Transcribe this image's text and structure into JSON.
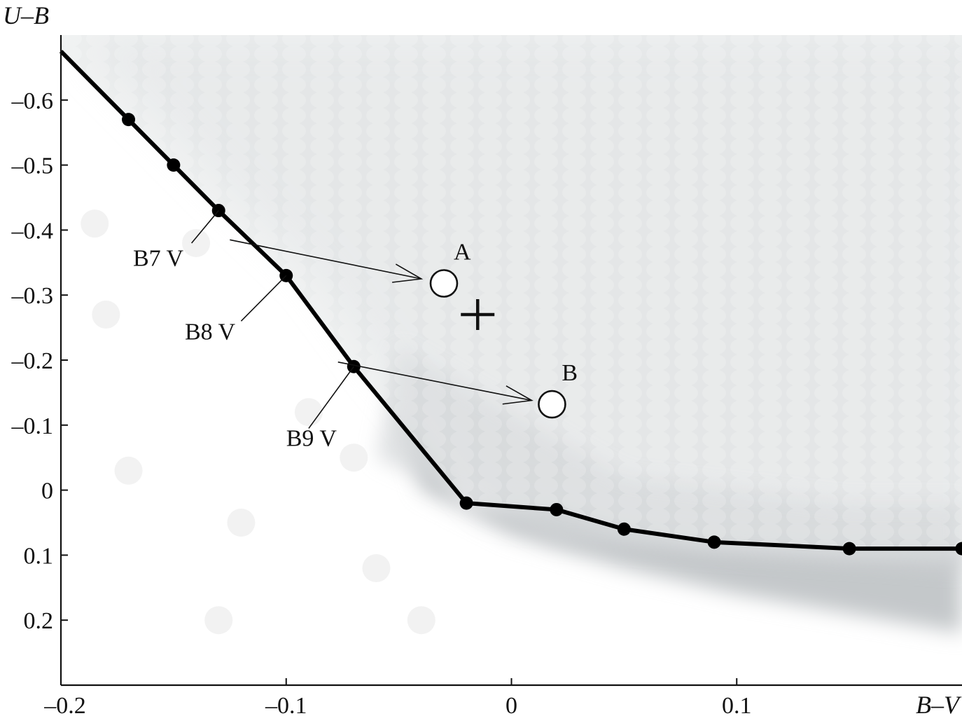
{
  "chart_data": {
    "type": "line",
    "title": "",
    "xlabel": "B–V",
    "ylabel": "U–B",
    "xlim": [
      -0.2,
      0.2
    ],
    "ylim": [
      0.3,
      -0.7
    ],
    "y_inverted": true,
    "grid": false,
    "legend": "none",
    "x_ticks": [
      {
        "value": -0.2,
        "label": "–0.2"
      },
      {
        "value": -0.1,
        "label": "–0.1"
      },
      {
        "value": 0,
        "label": "0"
      },
      {
        "value": 0.1,
        "label": "0.1"
      }
    ],
    "y_ticks": [
      {
        "value": -0.6,
        "label": "–0.6"
      },
      {
        "value": -0.5,
        "label": "–0.5"
      },
      {
        "value": -0.4,
        "label": "–0.4"
      },
      {
        "value": -0.3,
        "label": "–0.3"
      },
      {
        "value": -0.2,
        "label": "–0.2"
      },
      {
        "value": -0.1,
        "label": "–0.1"
      },
      {
        "value": 0,
        "label": "0"
      },
      {
        "value": 0.1,
        "label": "0.1"
      },
      {
        "value": 0.2,
        "label": "0.2"
      }
    ],
    "series": [
      {
        "line_color": "#000000",
        "x": [
          -0.2,
          -0.17,
          -0.15,
          -0.13,
          -0.1,
          -0.07,
          -0.02,
          0.02,
          0.05,
          0.09,
          0.15,
          0.2
        ],
        "y": [
          -0.675,
          -0.57,
          -0.5,
          -0.43,
          -0.33,
          -0.19,
          0.02,
          0.03,
          0.06,
          0.08,
          0.09,
          0.09
        ],
        "marker_x": [
          -0.17,
          -0.15,
          -0.13,
          -0.1,
          -0.07,
          -0.02,
          0.02,
          0.05,
          0.09,
          0.15,
          0.2
        ],
        "marker_y": [
          -0.57,
          -0.5,
          -0.43,
          -0.33,
          -0.19,
          0.02,
          0.03,
          0.06,
          0.08,
          0.09,
          0.09
        ]
      }
    ],
    "objects": [
      {
        "label": "A",
        "x": -0.03,
        "y": -0.318
      },
      {
        "label": "B",
        "x": 0.018,
        "y": -0.132
      }
    ],
    "cross_marker": {
      "x": -0.015,
      "y": -0.27
    },
    "arrows": [
      {
        "from_x": -0.125,
        "from_y": -0.385,
        "to_x": -0.04,
        "to_y": -0.325
      },
      {
        "from_x": -0.077,
        "from_y": -0.197,
        "to_x": 0.009,
        "to_y": -0.138
      }
    ],
    "annotations": [
      {
        "text": "B7 V",
        "target_x": -0.13,
        "target_y": -0.43,
        "text_x": -0.168,
        "text_y": -0.345,
        "line_end_x": -0.142,
        "line_end_y": -0.38
      },
      {
        "text": "B8 V",
        "target_x": -0.1,
        "target_y": -0.33,
        "text_x": -0.145,
        "text_y": -0.232,
        "line_end_x": -0.12,
        "line_end_y": -0.26
      },
      {
        "text": "B9 V",
        "target_x": -0.07,
        "target_y": -0.19,
        "text_x": -0.1,
        "text_y": -0.068,
        "line_end_x": -0.09,
        "line_end_y": -0.095
      }
    ],
    "background": {
      "type": "density",
      "color_light": "#eef0f0",
      "color_dark": "#c4c8ca"
    }
  }
}
